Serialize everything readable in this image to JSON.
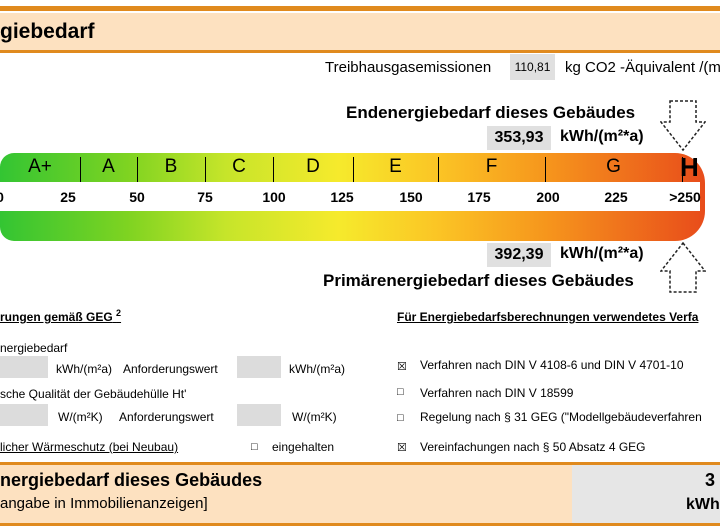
{
  "header": {
    "title": "giebedarf"
  },
  "ghg": {
    "label": "Treibhausgasemissionen",
    "value": "110,81",
    "unit": "kg CO2 -Äquivalent /(m"
  },
  "endenergie": {
    "title": "Endenergiebedarf dieses Gebäudes",
    "value": "353,93",
    "unit": "kWh/(m²*a)"
  },
  "primaerenergie": {
    "title": "Primärenergiebedarf dieses Gebäudes",
    "value": "392,39",
    "unit": "kWh/(m²*a)"
  },
  "scale": {
    "classes": [
      "A+",
      "A",
      "B",
      "C",
      "D",
      "E",
      "F",
      "G",
      "H"
    ],
    "ticks": [
      "0",
      "25",
      "50",
      "75",
      "100",
      "125",
      "150",
      "175",
      "200",
      "225",
      ">250"
    ],
    "end_marker_value": 353.93,
    "prim_marker_value": 392.39
  },
  "requirements": {
    "heading": "rungen gemäß GEG",
    "heading_sup": "2",
    "row1_label": "nergiebedarf",
    "row1_unit1": "kWh/(m²a)",
    "row1_req": "Anforderungswert",
    "row1_unit2": "kWh/(m²a)",
    "row2_label": "sche Qualität der Gebäudehülle Ht'",
    "row2_unit1": "W/(m²K)",
    "row2_req": "Anforderungswert",
    "row2_unit2": "W/(m²K)",
    "row3_label": "licher Wärmeschutz (bei Neubau)",
    "row3_check_label": "eingehalten"
  },
  "methods": {
    "heading": "Für Energiebedarfsberechnungen verwendetes Verfa",
    "items": [
      {
        "label": "Verfahren nach DIN V 4108-6 und DIN V 4701-10",
        "checked": true
      },
      {
        "label": "Verfahren nach DIN V 18599",
        "checked": false
      },
      {
        "label": "Regelung nach § 31 GEG (\"Modellgebäudeverfahren",
        "checked": false
      },
      {
        "label": "Vereinfachungen nach § 50 Absatz 4 GEG",
        "checked": true
      }
    ]
  },
  "bottom": {
    "title": "nergiebedarf dieses Gebäudes",
    "subtitle": "angabe in Immobilienanzeigen]",
    "value": "3",
    "unit": "kWh"
  }
}
